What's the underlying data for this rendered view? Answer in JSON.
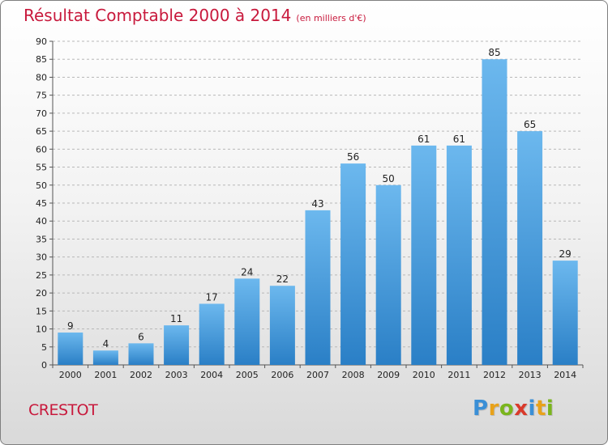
{
  "title": "Résultat Comptable 2000 à 2014",
  "unit_note": "(en milliers d'€)",
  "commune": "CRESTOT",
  "logo": {
    "letters": [
      "P",
      "r",
      "o",
      "x",
      "i",
      "t",
      "i"
    ],
    "colors": [
      "#3a8fd6",
      "#e8a21a",
      "#7ab51d",
      "#d93a2b",
      "#3a8fd6",
      "#e8a21a",
      "#7ab51d"
    ]
  },
  "colors": {
    "bar_top": "#6cb8ee",
    "bar_bottom": "#2a7fc6",
    "title": "#c8193c",
    "grid": "#b8b8b8"
  },
  "chart_data": {
    "type": "bar",
    "categories": [
      "2000",
      "2001",
      "2002",
      "2003",
      "2004",
      "2005",
      "2006",
      "2007",
      "2008",
      "2009",
      "2010",
      "2011",
      "2012",
      "2013",
      "2014"
    ],
    "values": [
      9,
      4,
      6,
      11,
      17,
      24,
      22,
      43,
      56,
      50,
      61,
      61,
      85,
      65,
      29
    ],
    "ylim": [
      0,
      90
    ],
    "yticks": [
      0,
      5,
      10,
      15,
      20,
      25,
      30,
      35,
      40,
      45,
      50,
      55,
      60,
      65,
      70,
      75,
      80,
      85,
      90
    ],
    "grid": true,
    "data_labels": true
  }
}
